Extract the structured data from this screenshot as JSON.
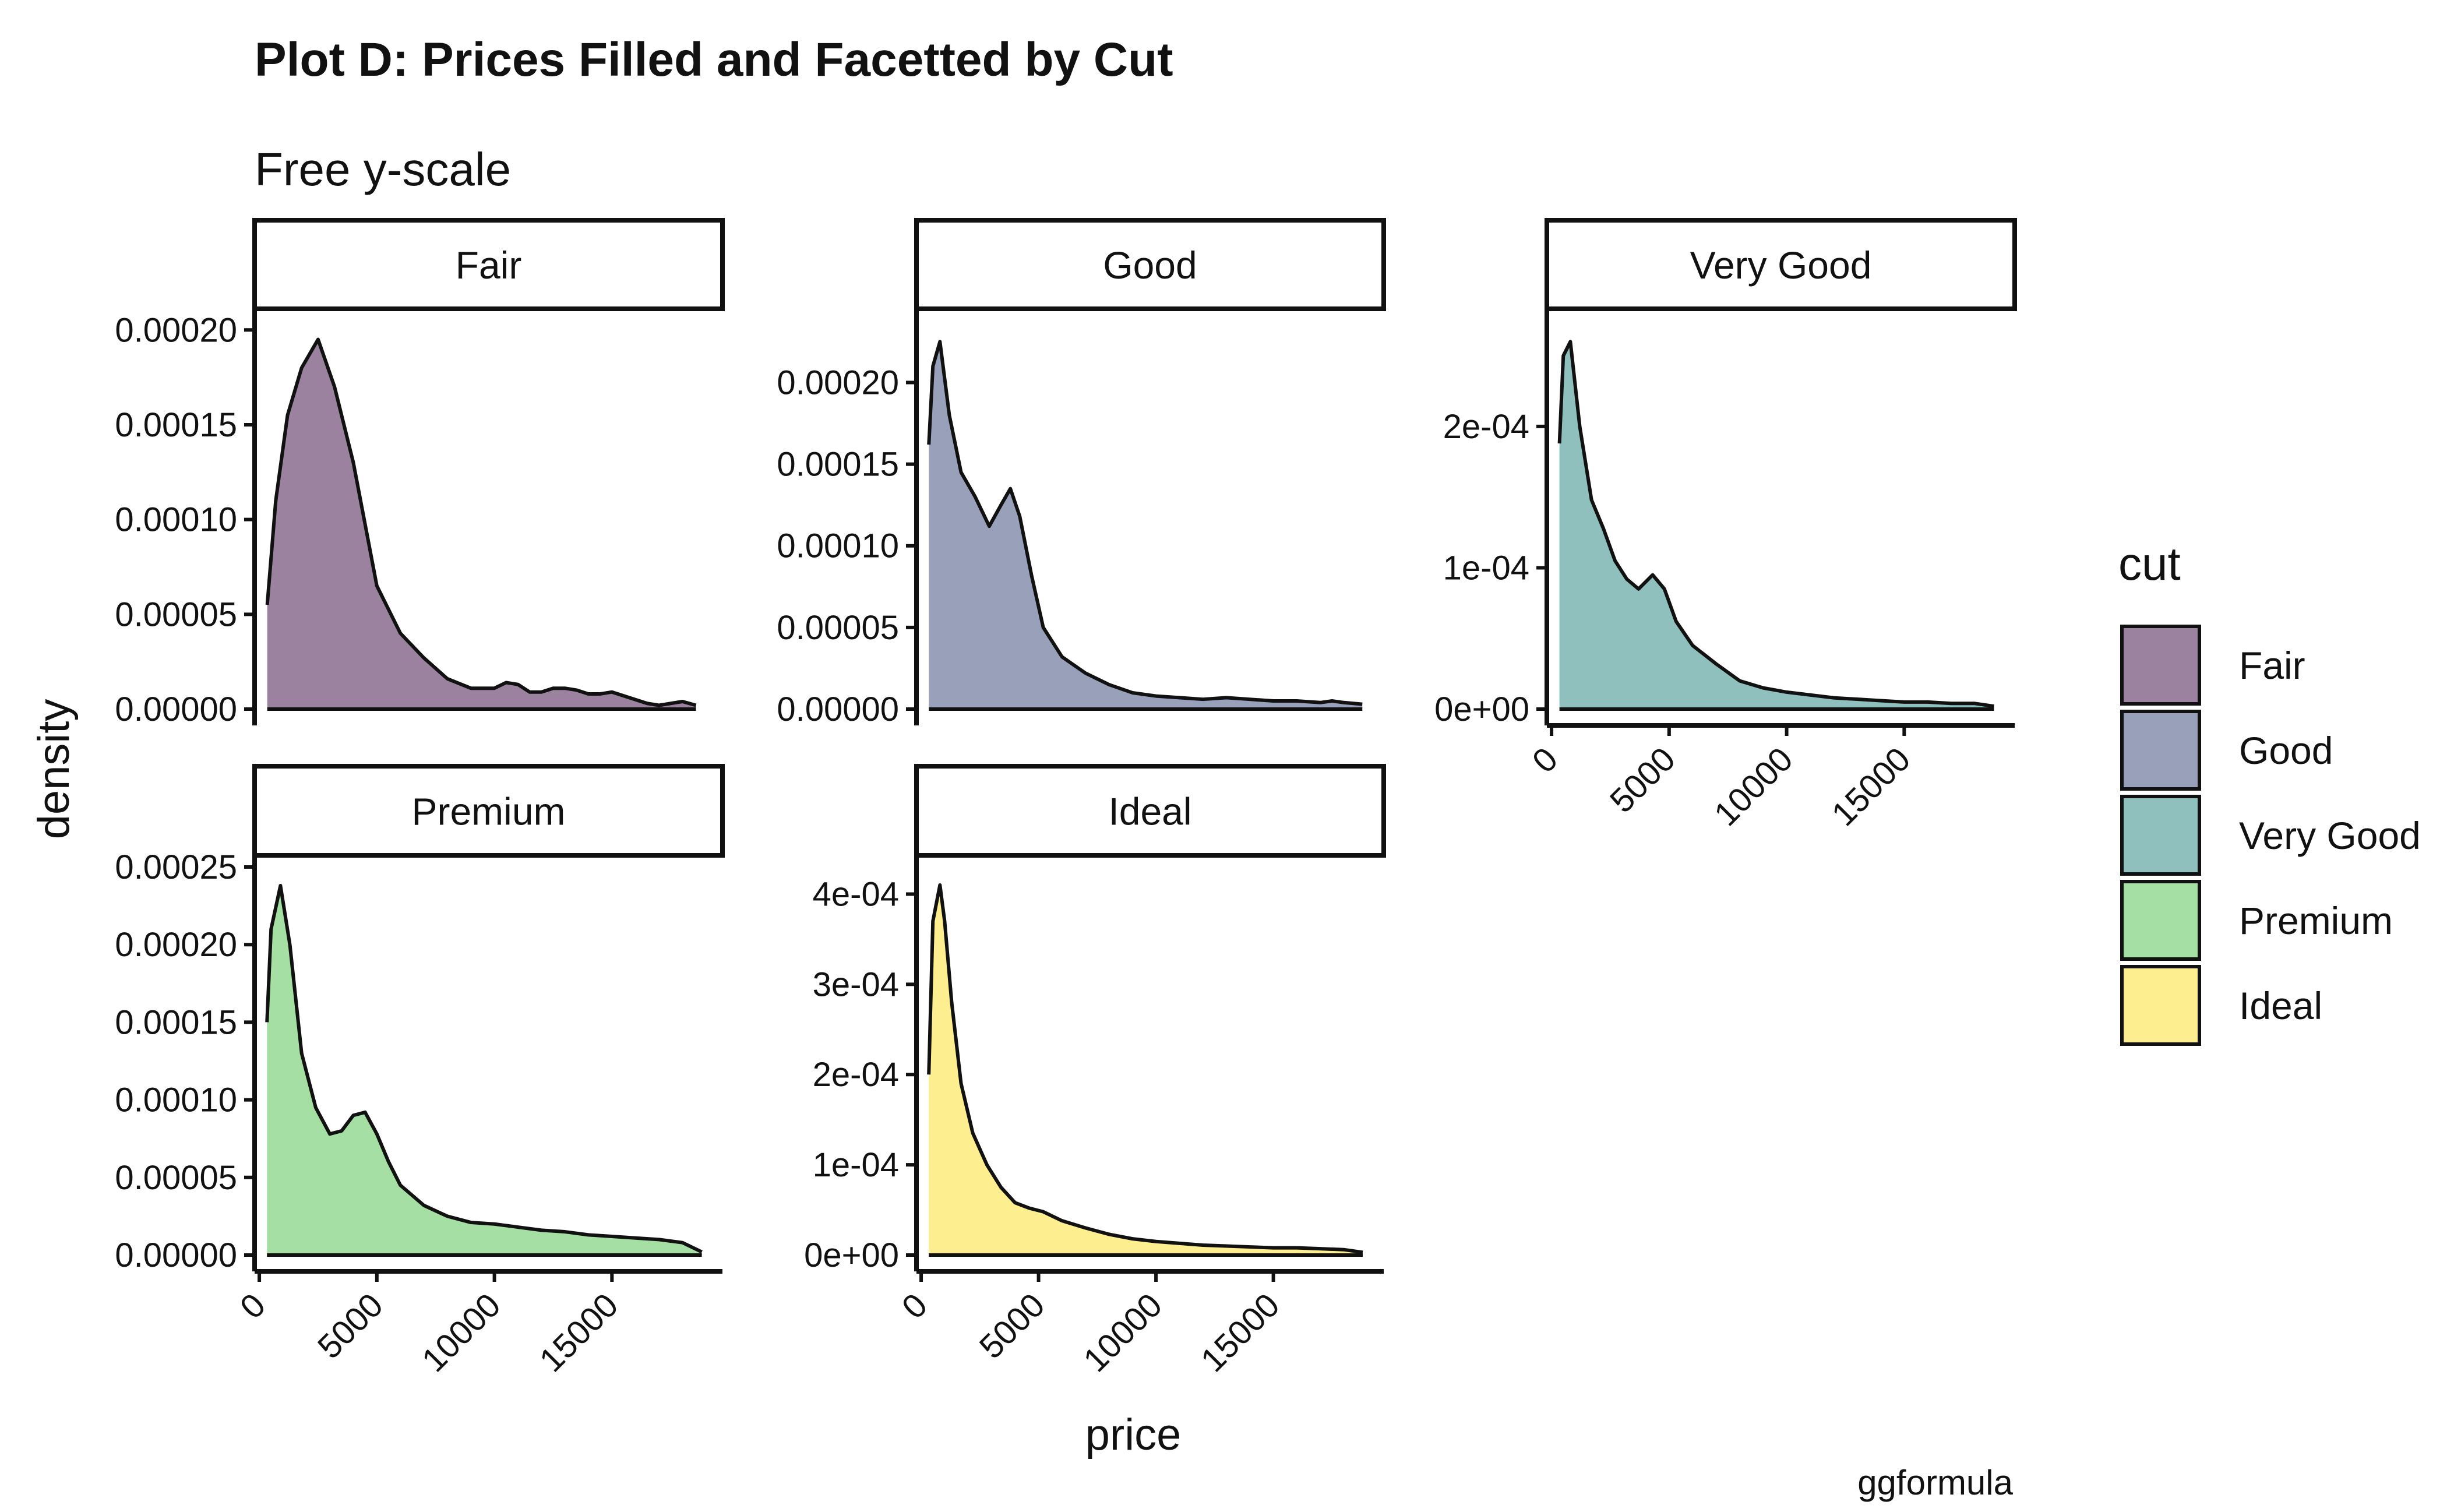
{
  "chart_data": {
    "type": "area",
    "title": "Plot D: Prices Filled and Facetted by Cut",
    "subtitle": "Free y-scale",
    "xlabel": "price",
    "ylabel": "density",
    "caption": "ggformula",
    "legend_title": "cut",
    "legend_position": "right",
    "grid": false,
    "x_ticks": [
      "0",
      "5000",
      "10000",
      "15000"
    ],
    "xlim": [
      -200,
      19700
    ],
    "series": [
      {
        "name": "Fair",
        "color": "#9b83a0",
        "ylim": [
          0,
          0.000205
        ],
        "y_ticks": [
          "0.00000",
          "0.00005",
          "0.00010",
          "0.00015",
          "0.00020"
        ],
        "y_tick_values": [
          0,
          5e-05,
          0.0001,
          0.00015,
          0.0002
        ],
        "x": [
          337,
          700,
          1200,
          1800,
          2500,
          3200,
          4000,
          5000,
          6000,
          7000,
          8000,
          9000,
          10000,
          10500,
          11000,
          11500,
          12000,
          12500,
          13000,
          13500,
          14000,
          14500,
          15000,
          15500,
          16000,
          16500,
          17000,
          17500,
          18000,
          18574
        ],
        "values": [
          5.5e-05,
          0.00011,
          0.000155,
          0.00018,
          0.000195,
          0.00017,
          0.00013,
          6.5e-05,
          4e-05,
          2.7e-05,
          1.6e-05,
          1.1e-05,
          1.1e-05,
          1.4e-05,
          1.3e-05,
          9e-06,
          9e-06,
          1.1e-05,
          1.1e-05,
          1e-05,
          8e-06,
          8e-06,
          9e-06,
          7e-06,
          5e-06,
          3e-06,
          2e-06,
          3e-06,
          4e-06,
          2e-06
        ]
      },
      {
        "name": "Good",
        "color": "#98a0ba",
        "ylim": [
          0,
          0.000238
        ],
        "y_ticks": [
          "0.00000",
          "0.00005",
          "0.00010",
          "0.00015",
          "0.00020"
        ],
        "y_tick_values": [
          0,
          5e-05,
          0.0001,
          0.00015,
          0.0002
        ],
        "x": [
          327,
          500,
          800,
          1200,
          1700,
          2300,
          2900,
          3400,
          3800,
          4200,
          4700,
          5200,
          6000,
          7000,
          8000,
          9000,
          10000,
          11000,
          12000,
          13000,
          14000,
          15000,
          16000,
          17000,
          17500,
          18000,
          18788
        ],
        "values": [
          0.000162,
          0.00021,
          0.000225,
          0.00018,
          0.000145,
          0.00013,
          0.000112,
          0.000125,
          0.000135,
          0.000118,
          8.2e-05,
          5e-05,
          3.2e-05,
          2.2e-05,
          1.5e-05,
          1e-05,
          8e-06,
          7e-06,
          6e-06,
          7e-06,
          6e-06,
          5e-06,
          5e-06,
          4e-06,
          5e-06,
          4e-06,
          3e-06
        ]
      },
      {
        "name": "Very Good",
        "color": "#8fc0bd",
        "ylim": [
          0,
          0.000275
        ],
        "y_ticks": [
          "0e+00",
          "1e-04",
          "2e-04"
        ],
        "y_tick_values": [
          0,
          0.0001,
          0.0002
        ],
        "x": [
          336,
          500,
          800,
          1200,
          1700,
          2200,
          2700,
          3200,
          3700,
          4300,
          4800,
          5300,
          6000,
          7000,
          8000,
          9000,
          10000,
          11000,
          12000,
          13000,
          14000,
          15000,
          16000,
          17000,
          18000,
          18818
        ],
        "values": [
          0.000188,
          0.00025,
          0.00026,
          0.0002,
          0.000148,
          0.000128,
          0.000105,
          9.2e-05,
          8.5e-05,
          9.5e-05,
          8.5e-05,
          6.2e-05,
          4.5e-05,
          3.2e-05,
          2e-05,
          1.5e-05,
          1.2e-05,
          1e-05,
          8e-06,
          7e-06,
          6e-06,
          5e-06,
          5e-06,
          4e-06,
          4e-06,
          2e-06
        ]
      },
      {
        "name": "Premium",
        "color": "#a5dfa4",
        "ylim": [
          0,
          0.00025
        ],
        "y_ticks": [
          "0.00000",
          "0.00005",
          "0.00010",
          "0.00015",
          "0.00020",
          "0.00025"
        ],
        "y_tick_values": [
          0,
          5e-05,
          0.0001,
          0.00015,
          0.0002,
          0.00025
        ],
        "x": [
          326,
          500,
          900,
          1300,
          1800,
          2400,
          3000,
          3500,
          4000,
          4500,
          5000,
          5500,
          6000,
          7000,
          8000,
          9000,
          10000,
          11000,
          12000,
          13000,
          14000,
          15000,
          16000,
          17000,
          18000,
          18823
        ],
        "values": [
          0.00015,
          0.00021,
          0.000238,
          0.0002,
          0.00013,
          9.5e-05,
          7.8e-05,
          8e-05,
          9e-05,
          9.2e-05,
          7.8e-05,
          6e-05,
          4.5e-05,
          3.2e-05,
          2.5e-05,
          2.1e-05,
          2e-05,
          1.8e-05,
          1.6e-05,
          1.5e-05,
          1.3e-05,
          1.2e-05,
          1.1e-05,
          1e-05,
          8e-06,
          2e-06
        ]
      },
      {
        "name": "Ideal",
        "color": "#fdee8f",
        "ylim": [
          0,
          0.00043
        ],
        "y_ticks": [
          "0e+00",
          "1e-04",
          "2e-04",
          "3e-04",
          "4e-04"
        ],
        "y_tick_values": [
          0,
          0.0001,
          0.0002,
          0.0003,
          0.0004
        ],
        "x": [
          326,
          500,
          800,
          1000,
          1300,
          1700,
          2200,
          2800,
          3400,
          4000,
          4600,
          5200,
          6000,
          7000,
          8000,
          9000,
          10000,
          11000,
          12000,
          13000,
          14000,
          15000,
          16000,
          17000,
          18000,
          18806
        ],
        "values": [
          0.0002,
          0.00037,
          0.00041,
          0.00037,
          0.00028,
          0.00019,
          0.000135,
          0.0001,
          7.5e-05,
          5.8e-05,
          5.2e-05,
          4.8e-05,
          3.8e-05,
          3e-05,
          2.3e-05,
          1.8e-05,
          1.5e-05,
          1.3e-05,
          1.1e-05,
          1e-05,
          9e-06,
          8e-06,
          8e-06,
          7e-06,
          6e-06,
          3e-06
        ]
      }
    ]
  }
}
